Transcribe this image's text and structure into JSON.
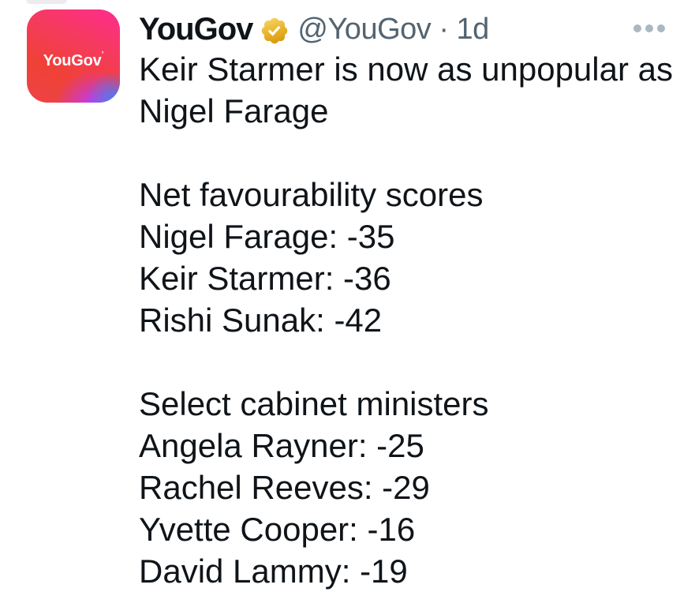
{
  "tweet": {
    "author": {
      "name": "YouGov",
      "avatar_text": "YouGov",
      "avatar_mark": "’",
      "meta": "@YouGov · 1d",
      "verified_badge": "gold-verified-checkmark"
    },
    "more_menu_icon": "ellipsis",
    "body_lines": [
      "Keir Starmer is now as unpopular as",
      "Nigel Farage",
      "",
      "Net favourability scores",
      "Nigel Farage: -35",
      "Keir Starmer: -36",
      "Rishi Sunak: -42",
      "",
      "Select cabinet ministers",
      "Angela Rayner: -25",
      "Rachel Reeves: -29",
      "Yvette Cooper: -16",
      "David Lammy: -19"
    ],
    "colors": {
      "background": "#ffffff",
      "text_primary": "#0f1419",
      "text_secondary": "#536471",
      "more_dots": "#aab8c2",
      "badge_gold_top": "#f9d665",
      "badge_gold_bottom": "#d79a10",
      "avatar_pink": "#ff2c8f",
      "avatar_red": "#ef4136",
      "avatar_purple": "#c438ee",
      "avatar_blue": "#4b7bfa"
    }
  }
}
